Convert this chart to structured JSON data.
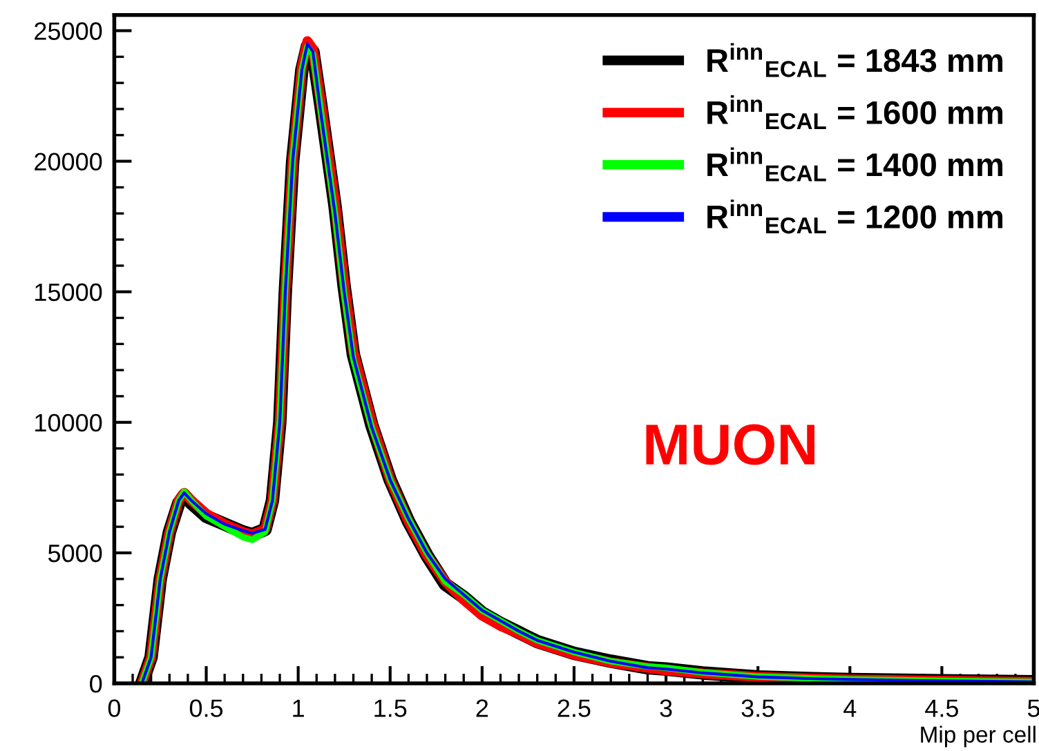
{
  "chart_data": {
    "type": "line",
    "xlabel": "Mip per cell",
    "x": [
      0.15,
      0.2,
      0.25,
      0.3,
      0.35,
      0.38,
      0.42,
      0.5,
      0.6,
      0.7,
      0.75,
      0.82,
      0.86,
      0.9,
      0.93,
      0.97,
      1.02,
      1.05,
      1.08,
      1.12,
      1.2,
      1.25,
      1.3,
      1.4,
      1.5,
      1.6,
      1.7,
      1.8,
      1.9,
      2.0,
      2.1,
      2.2,
      2.3,
      2.5,
      2.7,
      2.9,
      3.0,
      3.2,
      3.5,
      3.8,
      4.0,
      4.5,
      5.0
    ],
    "series": [
      {
        "name": "R$^{inn}$$_{ECAL}$ = 1843 mm",
        "color": "#000000",
        "values": [
          0,
          1000,
          4000,
          5800,
          6900,
          7200,
          6900,
          6400,
          6100,
          5800,
          5700,
          5900,
          7000,
          10000,
          15000,
          20000,
          23500,
          24400,
          24200,
          22300,
          18300,
          15200,
          12600,
          9900,
          7800,
          6200,
          4900,
          3800,
          3300,
          2700,
          2300,
          1950,
          1600,
          1150,
          850,
          600,
          550,
          400,
          250,
          180,
          150,
          100,
          60
        ]
      },
      {
        "name": "R$^{inn}$$_{ECAL}$ = 1600 mm",
        "color": "#ff0000",
        "values": [
          0,
          1000,
          4000,
          5800,
          7000,
          7300,
          7000,
          6500,
          6100,
          5800,
          5700,
          5900,
          7000,
          10000,
          15000,
          20000,
          23600,
          24600,
          24300,
          22400,
          18400,
          15300,
          12700,
          10000,
          7800,
          6200,
          4900,
          3900,
          3200,
          2600,
          2200,
          1900,
          1550,
          1100,
          800,
          600,
          500,
          380,
          250,
          180,
          150,
          100,
          60
        ]
      },
      {
        "name": "R$^{inn}$$_{ECAL}$ = 1400 mm",
        "color": "#00ff00",
        "values": [
          0,
          1000,
          4000,
          5800,
          7000,
          7350,
          7000,
          6400,
          6000,
          5600,
          5500,
          5800,
          7000,
          10100,
          15200,
          20100,
          23500,
          24400,
          24100,
          22100,
          18000,
          14900,
          12400,
          9800,
          7800,
          6300,
          5000,
          3900,
          3400,
          2800,
          2400,
          2000,
          1650,
          1200,
          850,
          650,
          600,
          420,
          260,
          190,
          150,
          100,
          60
        ]
      },
      {
        "name": "R$^{inn}$$_{ECAL}$ = 1200 mm",
        "color": "#0000ff",
        "values": [
          0,
          1000,
          4000,
          5800,
          7000,
          7300,
          7000,
          6500,
          6100,
          5850,
          5750,
          5900,
          7000,
          10000,
          15000,
          20000,
          23500,
          24500,
          24200,
          22000,
          18000,
          15000,
          12500,
          9800,
          7800,
          6300,
          5000,
          4000,
          3400,
          2800,
          2400,
          2000,
          1650,
          1200,
          850,
          600,
          550,
          400,
          250,
          180,
          150,
          100,
          60
        ]
      }
    ],
    "xlim": [
      0,
      5
    ],
    "ylim": [
      0,
      25600
    ],
    "xticks": [
      0,
      0.5,
      1,
      1.5,
      2,
      2.5,
      3,
      3.5,
      4,
      4.5,
      5
    ],
    "yticks": [
      0,
      5000,
      10000,
      15000,
      20000,
      25000
    ],
    "annotations": [
      "MUON"
    ],
    "legend": "top right",
    "grid": false,
    "marker": "none",
    "line_style": "solid"
  }
}
